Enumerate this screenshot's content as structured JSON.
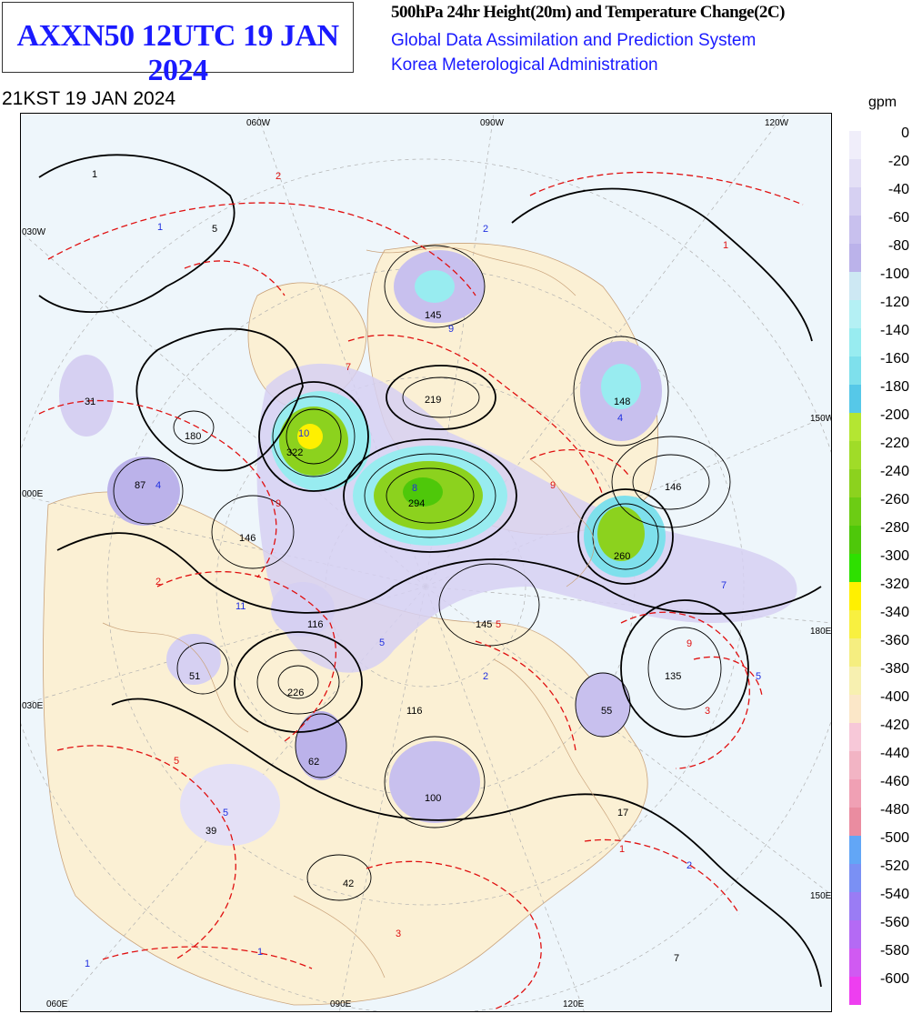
{
  "header": {
    "product": "AXXN50 12UTC 19 JAN 2024",
    "title": "500hPa 24hr Height(20m) and Temperature Change(2C)",
    "system": "Global Data Assimilation and Prediction System",
    "agency": "Korea Meterological Administration",
    "valid_time": "21KST 19 JAN 2024"
  },
  "legend": {
    "unit": "gpm",
    "levels": [
      {
        "label": "0",
        "color": "#f0eefa"
      },
      {
        "label": "-20",
        "color": "#e4e0f6"
      },
      {
        "label": "-40",
        "color": "#d6d0f2"
      },
      {
        "label": "-60",
        "color": "#c8c0ee"
      },
      {
        "label": "-80",
        "color": "#bbb2ea"
      },
      {
        "label": "-100",
        "color": "#cde8f3"
      },
      {
        "label": "-120",
        "color": "#b4f0f4"
      },
      {
        "label": "-140",
        "color": "#98ecf0"
      },
      {
        "label": "-160",
        "color": "#7ee0ec"
      },
      {
        "label": "-180",
        "color": "#56c8e8"
      },
      {
        "label": "-200",
        "color": "#b4e632"
      },
      {
        "label": "-220",
        "color": "#a0dc28"
      },
      {
        "label": "-240",
        "color": "#8cd21e"
      },
      {
        "label": "-260",
        "color": "#6ccc14"
      },
      {
        "label": "-280",
        "color": "#4ec80a"
      },
      {
        "label": "-300",
        "color": "#2ee000"
      },
      {
        "label": "-320",
        "color": "#fff000"
      },
      {
        "label": "-340",
        "color": "#f8f040"
      },
      {
        "label": "-360",
        "color": "#f5ee80"
      },
      {
        "label": "-380",
        "color": "#f7f0b0"
      },
      {
        "label": "-400",
        "color": "#fbe7c8"
      },
      {
        "label": "-420",
        "color": "#f7c8d8"
      },
      {
        "label": "-440",
        "color": "#f2b4c4"
      },
      {
        "label": "-460",
        "color": "#f0a0b4"
      },
      {
        "label": "-480",
        "color": "#ea8ca0"
      },
      {
        "label": "-500",
        "color": "#62a6f6"
      },
      {
        "label": "-520",
        "color": "#7a90f4"
      },
      {
        "label": "-540",
        "color": "#9a7cf4"
      },
      {
        "label": "-560",
        "color": "#b46af4"
      },
      {
        "label": "-580",
        "color": "#d05af2"
      },
      {
        "label": "-600",
        "color": "#ee3ef0"
      }
    ]
  },
  "map": {
    "lon_labels_top": [
      "060W",
      "090W",
      "120W"
    ],
    "lon_labels_bottom": [
      "060E",
      "090E",
      "120E"
    ],
    "lon_labels_left": [
      "030W",
      "000E",
      "030E"
    ],
    "lon_labels_right": [
      "150W",
      "180E",
      "150E"
    ],
    "height_centers": [
      "1",
      "5",
      "145",
      "219",
      "180",
      "322",
      "294",
      "148",
      "146",
      "87",
      "31",
      "146",
      "260",
      "116",
      "145",
      "135",
      "51",
      "226",
      "116",
      "55",
      "62",
      "100",
      "17",
      "39",
      "42",
      "7"
    ],
    "temp_centers": [
      "2",
      "1",
      "2",
      "1",
      "7",
      "9",
      "10",
      "8",
      "9",
      "4",
      "4",
      "9",
      "11",
      "2",
      "5",
      "5",
      "7",
      "2",
      "9",
      "3",
      "5",
      "5",
      "5",
      "2",
      "1",
      "1",
      "3",
      "1"
    ]
  }
}
